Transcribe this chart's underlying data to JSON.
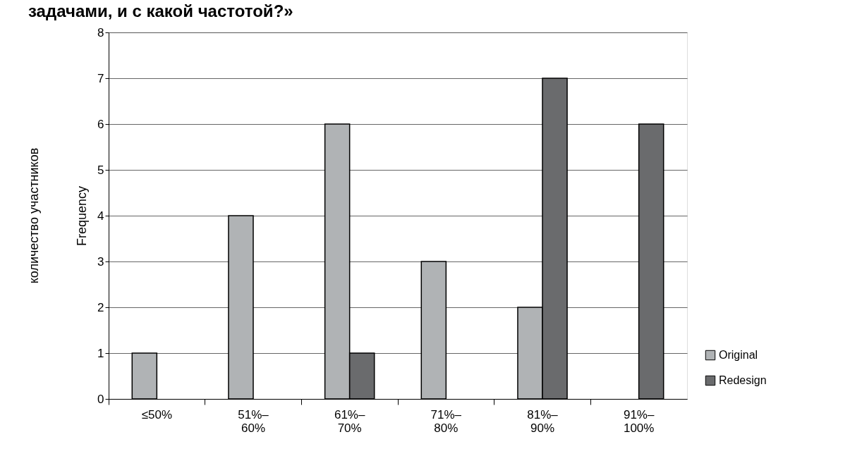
{
  "chart_data": {
    "type": "bar",
    "title": "задачами, и с какой частотой?»",
    "ylabel": "Frequency",
    "annotations": [
      "количество участников"
    ],
    "categories": [
      "≤50%",
      "51%–60%",
      "61%–70%",
      "71%–80%",
      "81%–90%",
      "91%–100%"
    ],
    "series": [
      {
        "name": "Original",
        "color": "#b0b3b5",
        "values": [
          1,
          4,
          6,
          3,
          2,
          0
        ]
      },
      {
        "name": "Redesign",
        "color": "#6a6b6d",
        "values": [
          0,
          0,
          1,
          0,
          7,
          6
        ]
      }
    ],
    "ylim": [
      0,
      8
    ],
    "yticks": [
      0,
      1,
      2,
      3,
      4,
      5,
      6,
      7,
      8
    ],
    "grid": "y",
    "legend": "bottom right"
  }
}
